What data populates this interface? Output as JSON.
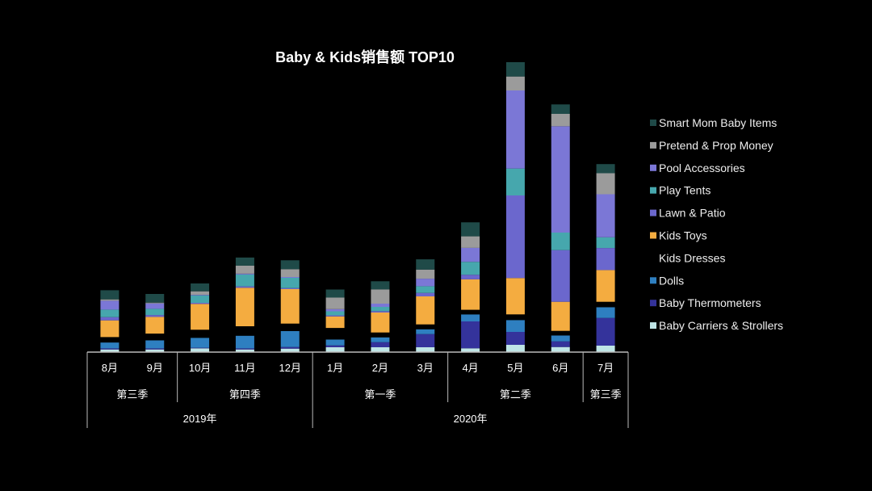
{
  "chart_data": {
    "type": "bar",
    "stacked": true,
    "title": "Baby & Kids销售额 TOP10",
    "xlabel": "",
    "ylabel": "",
    "y_axis_shown": false,
    "grid": false,
    "legend_position": "right",
    "categories": [
      "8月",
      "9月",
      "10月",
      "11月",
      "12月",
      "1月",
      "2月",
      "3月",
      "4月",
      "5月",
      "6月",
      "7月"
    ],
    "quarters": [
      {
        "label": "第三季",
        "span": 2
      },
      {
        "label": "第四季",
        "span": 3
      },
      {
        "label": "第一季",
        "span": 3
      },
      {
        "label": "第二季",
        "span": 3
      },
      {
        "label": "第三季",
        "span": 1
      }
    ],
    "years": [
      {
        "label": "2019年",
        "span": 5
      },
      {
        "label": "2020年",
        "span": 7
      }
    ],
    "series": [
      {
        "name": "Baby Carriers & Strollers",
        "color": "#bfe5e6",
        "values": [
          3.3,
          3.3,
          4.7,
          3.3,
          4.3,
          6,
          6,
          6,
          4.7,
          9,
          6.3,
          8
        ]
      },
      {
        "name": "Baby Thermometers",
        "color": "#34339b",
        "values": [
          1.3,
          1.3,
          0.7,
          1.3,
          2,
          2.3,
          6.3,
          16.3,
          33.3,
          16,
          7,
          34.3
        ]
      },
      {
        "name": "Dolls",
        "color": "#2e7fc0",
        "values": [
          7.3,
          10,
          12.3,
          15.7,
          19.7,
          7.3,
          6,
          6,
          8.7,
          14.7,
          7.3,
          13.3
        ]
      },
      {
        "name": "Kids Dresses",
        "color": "#000000",
        "values": [
          6.7,
          8.3,
          10,
          11.7,
          9.3,
          14.3,
          6,
          6,
          5.7,
          7,
          5.7,
          6.7
        ]
      },
      {
        "name": "Kids Toys",
        "color": "#f4ac40",
        "values": [
          20.7,
          20.7,
          32,
          47.7,
          42.7,
          14.3,
          24.7,
          34.7,
          37.7,
          45,
          36,
          39.3
        ]
      },
      {
        "name": "Lawn & Patio",
        "color": "#6b67cd",
        "values": [
          4,
          2.3,
          1.3,
          1.7,
          1.3,
          1.3,
          1.7,
          4.3,
          5.7,
          102.3,
          64,
          27.3
        ]
      },
      {
        "name": "Play Tents",
        "color": "#46a7ad",
        "values": [
          9.3,
          7.7,
          9.3,
          14.7,
          12.7,
          5,
          5.3,
          8.3,
          16,
          33.3,
          21.7,
          13.3
        ]
      },
      {
        "name": "Pool Accessories",
        "color": "#7b77d6",
        "values": [
          11,
          6.7,
          0.7,
          1,
          1,
          2.7,
          4,
          9.3,
          17.3,
          96.7,
          131.7,
          53.3
        ]
      },
      {
        "name": "Pretend & Prop Money",
        "color": "#9b9b9b",
        "values": [
          1.7,
          1,
          4.3,
          10,
          9.7,
          14.3,
          17.7,
          11.3,
          14.3,
          17.3,
          15.3,
          26
        ]
      },
      {
        "name": "Smart Mom Baby Items",
        "color": "#1f4a48",
        "values": [
          11.3,
          10.7,
          9.7,
          10,
          11,
          10,
          10,
          12.7,
          17.3,
          17.7,
          11.7,
          11.3
        ]
      }
    ]
  }
}
